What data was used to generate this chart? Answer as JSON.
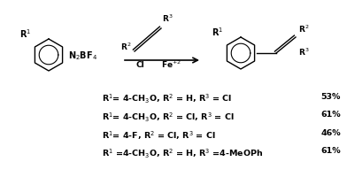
{
  "background_color": "#ffffff",
  "text_color": "#000000",
  "fig_width": 3.92,
  "fig_height": 2.01,
  "dpi": 100,
  "table_rows": [
    {
      "left": "R$^{1}$= 4-CH$_{3}$O, R$^{2}$ = H, R$^{3}$ = Cl",
      "right": "53%"
    },
    {
      "left": "R$^{1}$= 4-CH$_{3}$O, R$^{2}$ = Cl, R$^{3}$ = Cl",
      "right": "61%"
    },
    {
      "left": "R$^{1}$= 4-F, R$^{2}$ = Cl, R$^{3}$ = Cl",
      "right": "46%"
    },
    {
      "left": "R$^{1}$ =4-CH$_{3}$O, R$^{2}$ = H, R$^{3}$ =4-MeOPh",
      "right": "61%"
    }
  ],
  "font_size_struct": 7.0,
  "font_size_table": 6.8
}
